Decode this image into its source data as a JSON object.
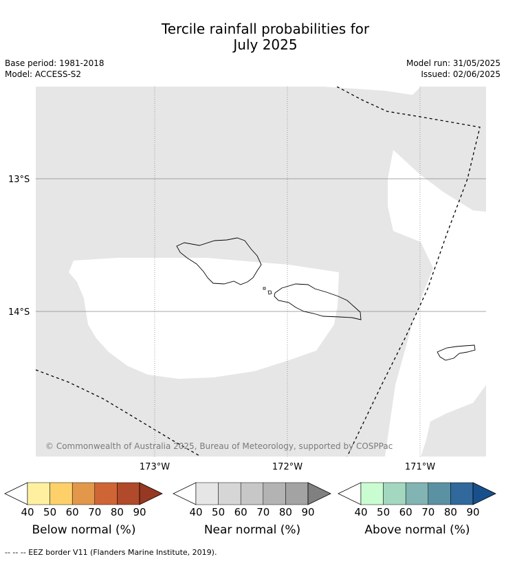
{
  "title_line1": "Tercile rainfall probabilities for",
  "title_line2": "July 2025",
  "meta": {
    "base_period": "Base period: 1981-2018",
    "model": "Model: ACCESS-S2",
    "model_run": "Model run: 31/05/2025",
    "issued": "Issued: 02/06/2025"
  },
  "map": {
    "lat_labels": [
      "13°S",
      "14°S"
    ],
    "lon_labels": [
      "173°W",
      "172°W",
      "171°W"
    ],
    "copyright": "© Commonwealth of Australia 2025, Bureau of Meteorology, supported by COSPPac",
    "colors": {
      "near_normal_shade": "#e6e6e6",
      "grid": "#888888"
    }
  },
  "colorbars": [
    {
      "label": "Below normal (%)",
      "ticks": [
        "40",
        "50",
        "60",
        "70",
        "80",
        "90"
      ],
      "colors": [
        "#ffffff",
        "#fff0a0",
        "#fed06a",
        "#e2974a",
        "#cf6535",
        "#b04a2a",
        "#963822"
      ]
    },
    {
      "label": "Near normal (%)",
      "ticks": [
        "40",
        "50",
        "60",
        "70",
        "80",
        "90"
      ],
      "colors": [
        "#ffffff",
        "#e6e6e6",
        "#d6d6d6",
        "#c7c7c7",
        "#b3b3b3",
        "#a3a3a3",
        "#808080"
      ]
    },
    {
      "label": "Above normal (%)",
      "ticks": [
        "40",
        "50",
        "60",
        "70",
        "80",
        "90"
      ],
      "colors": [
        "#ffffff",
        "#c9fcd0",
        "#a3d7bf",
        "#81b4b2",
        "#5a92a3",
        "#31699c",
        "#17508c"
      ]
    }
  ],
  "footnote": "--  --  -- EEZ border V11 (Flanders Marine Institute, 2019)."
}
